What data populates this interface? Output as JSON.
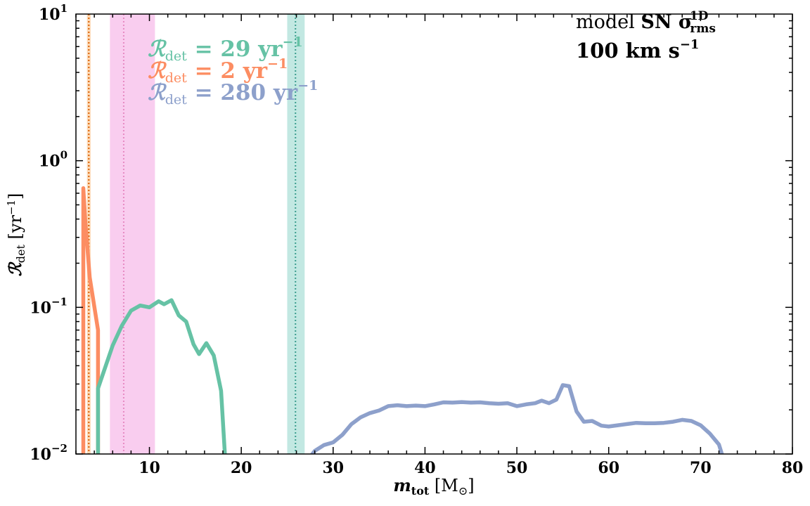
{
  "chart_data": {
    "type": "line",
    "xlabel": "m_tot [M_⊙]",
    "ylabel": "R_det [yr^-1]",
    "xlim": [
      2,
      80
    ],
    "ylim": [
      0.01,
      10
    ],
    "yscale": "log",
    "x_ticks": [
      10,
      20,
      30,
      40,
      50,
      60,
      70,
      80
    ],
    "x_tick_labels": [
      "10",
      "20",
      "30",
      "40",
      "50",
      "60",
      "70",
      "80"
    ],
    "y_ticks": [
      0.01,
      0.1,
      1,
      10
    ],
    "y_tick_labels": [
      {
        "base": "10",
        "exp": "−2"
      },
      {
        "base": "10",
        "exp": "−1"
      },
      {
        "base": "10",
        "exp": "0"
      },
      {
        "base": "10",
        "exp": "1"
      }
    ],
    "grid": false,
    "annotation": {
      "line1_prefix": "model ",
      "line1_bold": "SN σ",
      "line1_sup": "1D",
      "line1_sub": "rms",
      "line2": "100 km s",
      "line2_sup": "−1"
    },
    "legend_entries": [
      {
        "label": "R",
        "sub": "det",
        "value": " = 29 yr",
        "sup": "−1",
        "color": "#66c2a5"
      },
      {
        "label": "R",
        "sub": "det",
        "value": " = 2 yr",
        "sup": "−1",
        "color": "#fc8d62"
      },
      {
        "label": "R",
        "sub": "det",
        "value": " = 280 yr",
        "sup": "−1",
        "color": "#8da0cb"
      }
    ],
    "bands": [
      {
        "x0": 3.2,
        "x1": 3.6,
        "center": 3.4,
        "fill": "#fdd9b5",
        "line": "#d95f02"
      },
      {
        "x0": 5.7,
        "x1": 10.6,
        "center": 7.2,
        "fill": "#f9cdef",
        "line": "#e78ac3"
      },
      {
        "x0": 25.0,
        "x1": 26.9,
        "center": 25.9,
        "fill": "#c2e8e2",
        "line": "#3a9e8e"
      }
    ],
    "series": [
      {
        "color": "#fc8d62",
        "x": [
          2.8,
          2.8,
          3.0,
          3.5,
          4.4,
          4.4
        ],
        "y": [
          0.005,
          0.65,
          0.4,
          0.16,
          0.07,
          0.005
        ]
      },
      {
        "color": "#66c2a5",
        "x": [
          4.4,
          4.4,
          6.0,
          7.0,
          8.0,
          9.0,
          10.0,
          11.0,
          11.6,
          12.4,
          13.2,
          14.0,
          14.8,
          15.4,
          16.2,
          17.0,
          17.8,
          18.5
        ],
        "y": [
          0.005,
          0.028,
          0.055,
          0.075,
          0.095,
          0.103,
          0.1,
          0.11,
          0.105,
          0.112,
          0.088,
          0.08,
          0.056,
          0.048,
          0.057,
          0.047,
          0.027,
          0.005
        ]
      },
      {
        "color": "#8da0cb",
        "x": [
          26.5,
          28,
          29,
          30,
          31,
          32,
          33,
          34,
          35,
          36,
          37,
          38,
          39,
          40,
          41,
          42,
          43,
          44,
          45,
          46,
          47,
          48,
          49,
          50,
          51,
          52,
          52.7,
          53.5,
          54.3,
          55.0,
          55.7,
          56.5,
          57.3,
          58.2,
          59.2,
          60.0,
          61.0,
          62.0,
          63.0,
          64.0,
          65.0,
          66.0,
          67.0,
          68.0,
          69.0,
          70.0,
          71.0,
          72.0,
          72.8
        ],
        "y": [
          0.008,
          0.0105,
          0.0115,
          0.012,
          0.0135,
          0.016,
          0.0178,
          0.019,
          0.0198,
          0.0212,
          0.0215,
          0.0212,
          0.0214,
          0.0212,
          0.0218,
          0.0225,
          0.0224,
          0.0226,
          0.0224,
          0.0225,
          0.0222,
          0.022,
          0.0222,
          0.0212,
          0.0218,
          0.0222,
          0.0231,
          0.0222,
          0.0235,
          0.0295,
          0.029,
          0.0195,
          0.0166,
          0.0168,
          0.0156,
          0.0154,
          0.0157,
          0.016,
          0.0163,
          0.0162,
          0.0162,
          0.0163,
          0.0166,
          0.0171,
          0.0168,
          0.0157,
          0.0138,
          0.0116,
          0.008
        ]
      }
    ]
  }
}
